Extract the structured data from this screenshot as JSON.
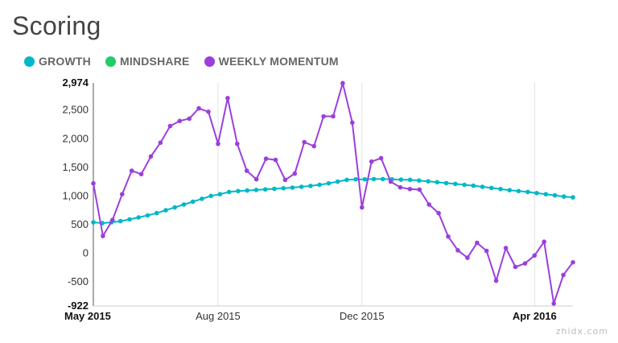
{
  "title": "Scoring",
  "legend": [
    {
      "label": "GROWTH",
      "color": "#00b8c8"
    },
    {
      "label": "MINDSHARE",
      "color": "#22cc66"
    },
    {
      "label": "WEEKLY MOMENTUM",
      "color": "#9b3fdc"
    }
  ],
  "watermark": "zhidx.com",
  "chart_data": {
    "type": "line",
    "title": "Scoring",
    "ylim": [
      -922,
      2974
    ],
    "yticks": [
      "2,974",
      "2,500",
      "2,000",
      "1,500",
      "1,000",
      "500",
      "0",
      "-500",
      "-922"
    ],
    "ytick_values": [
      2974,
      2500,
      2000,
      1500,
      1000,
      500,
      0,
      -500,
      -922
    ],
    "xticks": [
      "May 2015",
      "Aug 2015",
      "Dec 2015",
      "Apr 2016"
    ],
    "xtick_index": [
      0,
      13,
      28,
      46
    ],
    "grid": "vertical",
    "series": [
      {
        "name": "GROWTH",
        "color": "#00b8c8",
        "values": [
          540,
          525,
          540,
          560,
          590,
          625,
          660,
          700,
          750,
          800,
          850,
          900,
          950,
          1000,
          1030,
          1070,
          1085,
          1095,
          1105,
          1115,
          1125,
          1135,
          1145,
          1160,
          1175,
          1195,
          1220,
          1250,
          1280,
          1290,
          1290,
          1295,
          1295,
          1290,
          1285,
          1280,
          1270,
          1255,
          1240,
          1225,
          1210,
          1195,
          1180,
          1160,
          1140,
          1120,
          1100,
          1085,
          1070,
          1050,
          1030,
          1010,
          990,
          975
        ]
      },
      {
        "name": "WEEKLY MOMENTUM",
        "color": "#9b3fdc",
        "values": [
          1220,
          300,
          580,
          1030,
          1440,
          1380,
          1690,
          1930,
          2220,
          2310,
          2350,
          2530,
          2470,
          1910,
          2710,
          1910,
          1440,
          1290,
          1650,
          1630,
          1280,
          1390,
          1940,
          1870,
          2390,
          2390,
          2970,
          2280,
          800,
          1600,
          1660,
          1250,
          1150,
          1120,
          1110,
          850,
          700,
          290,
          50,
          -80,
          180,
          40,
          -480,
          90,
          -240,
          -180,
          -40,
          200,
          -880,
          -380,
          -160
        ]
      }
    ]
  }
}
